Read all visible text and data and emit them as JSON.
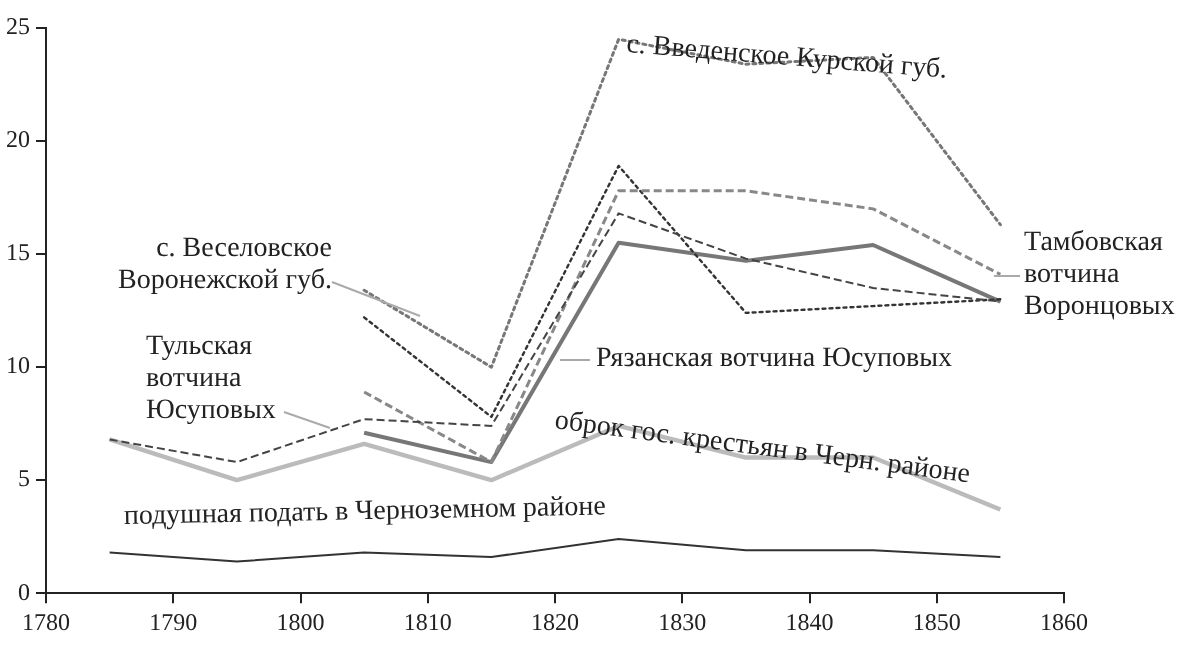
{
  "chart_data": {
    "type": "line",
    "x": [
      1785,
      1795,
      1805,
      1815,
      1825,
      1835,
      1845,
      1855
    ],
    "xlim": [
      1780,
      1860
    ],
    "xticks": [
      1780,
      1790,
      1800,
      1810,
      1820,
      1830,
      1840,
      1850,
      1860
    ],
    "ylim": [
      0,
      25
    ],
    "yticks": [
      0,
      5,
      10,
      15,
      20,
      25
    ],
    "grid": false,
    "legend": false,
    "marker": "none",
    "series": [
      {
        "name": "подушная подать в Черноземном районе",
        "color": "#333333",
        "line_style": "solid",
        "values": [
          1.8,
          1.4,
          1.8,
          1.6,
          2.4,
          1.9,
          1.9,
          1.6
        ]
      },
      {
        "name": "оброк гос. крестьян в Черн. районе",
        "color": "#bbbbbb",
        "line_style": "solid",
        "values": [
          6.8,
          5.0,
          6.6,
          5.0,
          7.4,
          6.0,
          6.0,
          3.7
        ]
      },
      {
        "name": "Тульская вотчина Юсуповых",
        "color": "#444444",
        "line_style": "dashed",
        "values": [
          6.8,
          5.8,
          7.7,
          7.4,
          16.8,
          14.8,
          13.5,
          12.9
        ]
      },
      {
        "name": "Рязанская вотчина Юсуповых",
        "color": "#777777",
        "line_style": "solid",
        "values": [
          null,
          null,
          7.1,
          5.8,
          15.5,
          14.7,
          15.4,
          12.9
        ]
      },
      {
        "name": "Тамбовская вотчина Воронцовых",
        "color": "#888888",
        "line_style": "dashed",
        "values": [
          null,
          null,
          8.9,
          5.8,
          17.8,
          17.8,
          17.0,
          14.1
        ]
      },
      {
        "name": "с. Веселовское Воронежской губ.",
        "color": "#333333",
        "line_style": "dotted",
        "values": [
          null,
          null,
          12.2,
          7.8,
          18.9,
          12.4,
          12.7,
          13.0
        ]
      },
      {
        "name": "с. Введенское Курской губ.",
        "color": "#777777",
        "line_style": "dotted",
        "values": [
          null,
          null,
          13.4,
          10.0,
          24.5,
          23.4,
          23.7,
          16.3
        ]
      }
    ]
  }
}
